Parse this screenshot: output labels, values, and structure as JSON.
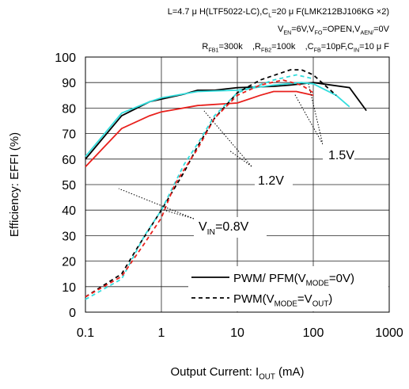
{
  "chart_data": {
    "type": "line",
    "header": [
      [
        {
          "text": "L=4.7 μ H(LTF5022-LC),C"
        },
        {
          "text": "L",
          "sub": true
        },
        {
          "text": "=20 μ F(LMK212BJ106KG ×2)"
        }
      ],
      [
        {
          "text": "V"
        },
        {
          "text": "EN",
          "sub": true
        },
        {
          "text": "=6V,V"
        },
        {
          "text": "FO",
          "sub": true
        },
        {
          "text": "=OPEN,V"
        },
        {
          "text": "AEN/",
          "sub": true
        },
        {
          "text": "=0V"
        }
      ],
      [
        {
          "text": "R"
        },
        {
          "text": "FB1",
          "sub": true
        },
        {
          "text": "=300k    ,R"
        },
        {
          "text": "FB2",
          "sub": true
        },
        {
          "text": "=100k    ,C"
        },
        {
          "text": "FB",
          "sub": true
        },
        {
          "text": "=10pF,C"
        },
        {
          "text": "IN",
          "sub": true
        },
        {
          "text": "=10 μ F"
        }
      ]
    ],
    "y_label": [
      {
        "text": "Efficiency: EFFI (%)"
      }
    ],
    "x_label": [
      {
        "text": "Output Current: I"
      },
      {
        "text": "OUT",
        "sub": true
      },
      {
        "text": " (mA)"
      }
    ],
    "annotations": [
      [
        {
          "text": "1.5V"
        }
      ],
      [
        {
          "text": "1.2V"
        }
      ],
      [
        {
          "text": "V"
        },
        {
          "text": "IN",
          "sub": true
        },
        {
          "text": "=0.8V"
        }
      ]
    ],
    "legend": [
      {
        "dashed": false,
        "label": [
          {
            "text": "PWM/ PFM(V"
          },
          {
            "text": "MODE",
            "sub": true
          },
          {
            "text": "=0V)"
          }
        ]
      },
      {
        "dashed": true,
        "label": [
          {
            "text": "PWM(V"
          },
          {
            "text": "MODE",
            "sub": true
          },
          {
            "text": "=V"
          },
          {
            "text": "OUT",
            "sub": true
          },
          {
            "text": ")"
          }
        ]
      }
    ],
    "xlog": true,
    "grid": true,
    "xlim": [
      0.1,
      1000
    ],
    "xticks": [
      0.1,
      1,
      10,
      100,
      1000
    ],
    "ylim": [
      0,
      100
    ],
    "yticks": [
      0,
      10,
      20,
      30,
      40,
      50,
      60,
      70,
      80,
      90,
      100
    ],
    "series": [
      {
        "color": "#000000",
        "dashed": false,
        "x": [
          0.1,
          0.3,
          0.7,
          1,
          2,
          3,
          5,
          10,
          30,
          50,
          100,
          300,
          500
        ],
        "values": [
          60,
          77,
          82.5,
          83.5,
          85.5,
          87,
          87,
          88,
          88.5,
          89,
          90,
          88,
          79
        ]
      },
      {
        "color": "#33dddd",
        "dashed": false,
        "x": [
          0.1,
          0.3,
          0.7,
          1,
          3,
          10,
          30,
          70,
          100,
          200,
          300
        ],
        "values": [
          61,
          78,
          82.5,
          84,
          86.5,
          87,
          89,
          90,
          89.5,
          85,
          80.5
        ]
      },
      {
        "color": "#e8201c",
        "dashed": false,
        "x": [
          0.1,
          0.3,
          0.7,
          1,
          3,
          10,
          20,
          30,
          60,
          100
        ],
        "values": [
          57,
          72,
          77,
          78.5,
          81,
          82,
          85,
          86.5,
          86.5,
          85
        ]
      },
      {
        "color": "#000000",
        "dashed": true,
        "x": [
          0.1,
          0.3,
          0.5,
          1,
          2,
          3,
          5,
          10,
          20,
          50,
          70,
          100,
          200
        ],
        "values": [
          6,
          15,
          26,
          40,
          55,
          65,
          76,
          86,
          91,
          95,
          95,
          93,
          85
        ]
      },
      {
        "color": "#33dddd",
        "dashed": true,
        "x": [
          0.1,
          0.3,
          0.6,
          1,
          2,
          3,
          5,
          10,
          30,
          60,
          100
        ],
        "values": [
          5,
          13,
          30,
          40,
          58,
          66,
          77,
          86,
          91,
          93,
          91.5
        ]
      },
      {
        "color": "#e8201c",
        "dashed": true,
        "x": [
          0.1,
          0.3,
          0.6,
          1,
          1.5,
          2,
          3,
          5,
          10,
          20,
          40,
          70,
          100
        ],
        "values": [
          6,
          14,
          27,
          37,
          50,
          56,
          64,
          76,
          85,
          89,
          91,
          89,
          86
        ]
      }
    ]
  }
}
